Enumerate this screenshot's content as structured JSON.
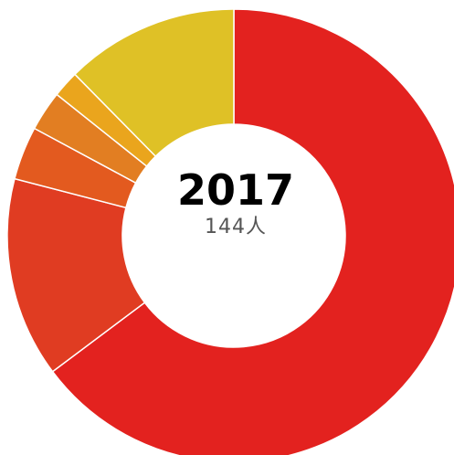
{
  "chart_data": {
    "type": "pie",
    "title": "2017",
    "subtitle": "144人",
    "values": [
      68,
      15,
      4,
      3,
      2,
      13
    ],
    "colors": [
      "#e3221f",
      "#e03c22",
      "#e35a1f",
      "#e27e22",
      "#eaa51d",
      "#dfc126"
    ]
  }
}
